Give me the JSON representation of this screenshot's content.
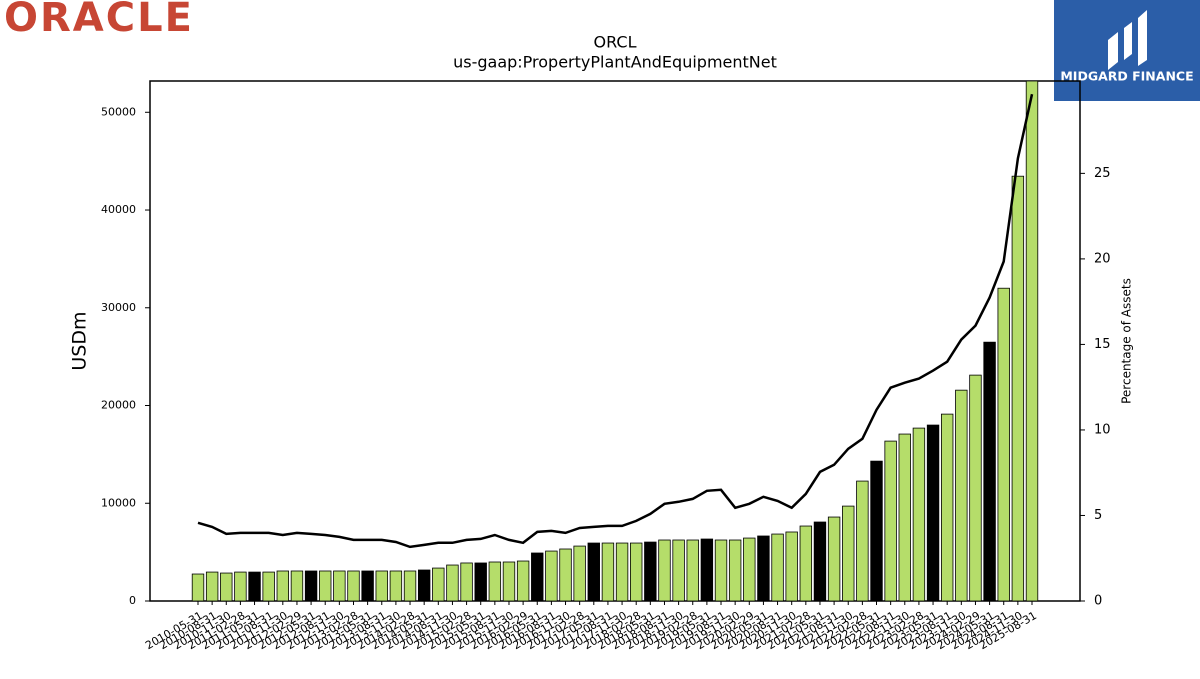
{
  "brand": "ORACLE",
  "watermark": "MIDGARD FINANCE",
  "chart_data": {
    "type": "bar",
    "title": "ORCL",
    "subtitle": "us-gaap:PropertyPlantAndEquipmentNet",
    "y_label": "USDm",
    "y2_label": "Percentage of Assets",
    "categories": [
      "2010-05-31",
      "2010-08-31",
      "2010-11-30",
      "2011-02-28",
      "2011-05-31",
      "2011-08-31",
      "2011-11-30",
      "2012-02-29",
      "2012-05-31",
      "2012-08-31",
      "2012-11-30",
      "2013-02-28",
      "2013-05-31",
      "2013-08-31",
      "2013-11-30",
      "2014-02-28",
      "2014-05-31",
      "2014-08-31",
      "2014-11-30",
      "2015-02-28",
      "2015-05-31",
      "2015-08-31",
      "2015-11-30",
      "2016-02-29",
      "2016-05-31",
      "2016-08-31",
      "2016-11-30",
      "2017-02-28",
      "2017-05-31",
      "2017-08-31",
      "2017-11-30",
      "2018-02-28",
      "2018-05-31",
      "2018-08-31",
      "2018-11-30",
      "2019-02-28",
      "2019-05-31",
      "2019-08-31",
      "2019-11-30",
      "2020-02-29",
      "2020-05-31",
      "2020-08-31",
      "2020-11-30",
      "2021-02-28",
      "2021-05-31",
      "2021-08-31",
      "2021-11-30",
      "2022-02-28",
      "2022-05-31",
      "2022-08-31",
      "2022-11-30",
      "2023-02-28",
      "2023-05-31",
      "2023-08-31",
      "2023-11-30",
      "2024-02-29",
      "2024-05-31",
      "2024-08-31",
      "2024-11-30",
      "2025-08-31"
    ],
    "series": [
      {
        "name": "PropertyPlantAndEquipmentNet",
        "type": "bar",
        "color": "#b5dd6a",
        "edge_color": "#000000",
        "colors": [
          "#b5dd6a",
          "#b5dd6a",
          "#b5dd6a",
          "#b5dd6a",
          "#000000",
          "#b5dd6a",
          "#b5dd6a",
          "#b5dd6a",
          "#000000",
          "#b5dd6a",
          "#b5dd6a",
          "#b5dd6a",
          "#000000",
          "#b5dd6a",
          "#b5dd6a",
          "#b5dd6a",
          "#000000",
          "#b5dd6a",
          "#b5dd6a",
          "#b5dd6a",
          "#000000",
          "#b5dd6a",
          "#b5dd6a",
          "#b5dd6a",
          "#000000",
          "#b5dd6a",
          "#b5dd6a",
          "#b5dd6a",
          "#000000",
          "#b5dd6a",
          "#b5dd6a",
          "#b5dd6a",
          "#000000",
          "#b5dd6a",
          "#b5dd6a",
          "#b5dd6a",
          "#000000",
          "#b5dd6a",
          "#b5dd6a",
          "#b5dd6a",
          "#000000",
          "#b5dd6a",
          "#b5dd6a",
          "#b5dd6a",
          "#000000",
          "#b5dd6a",
          "#b5dd6a",
          "#b5dd6a",
          "#000000",
          "#b5dd6a",
          "#b5dd6a",
          "#b5dd6a",
          "#000000",
          "#b5dd6a",
          "#b5dd6a",
          "#b5dd6a",
          "#000000",
          "#b5dd6a",
          "#b5dd6a",
          "#b5dd6a"
        ],
        "values": [
          2760,
          2960,
          2860,
          2960,
          2960,
          2960,
          3070,
          3070,
          3070,
          3070,
          3070,
          3070,
          3070,
          3070,
          3070,
          3070,
          3170,
          3370,
          3680,
          3890,
          3890,
          3990,
          3990,
          4090,
          4910,
          5110,
          5320,
          5620,
          5930,
          5930,
          5930,
          5930,
          6030,
          6240,
          6240,
          6240,
          6340,
          6240,
          6240,
          6440,
          6650,
          6850,
          7060,
          7670,
          8080,
          8590,
          9710,
          12270,
          14310,
          16360,
          17080,
          17690,
          18000,
          19120,
          21570,
          23110,
          26480,
          32000,
          43460,
          53200
        ]
      },
      {
        "name": "Percentage of Assets",
        "type": "line",
        "axis": "y2",
        "color": "#000000",
        "values": [
          4.57,
          4.33,
          3.92,
          3.98,
          3.98,
          3.98,
          3.86,
          3.98,
          3.92,
          3.86,
          3.75,
          3.57,
          3.57,
          3.57,
          3.45,
          3.16,
          3.28,
          3.4,
          3.4,
          3.57,
          3.63,
          3.86,
          3.57,
          3.4,
          4.04,
          4.1,
          3.98,
          4.27,
          4.33,
          4.39,
          4.39,
          4.68,
          5.09,
          5.68,
          5.8,
          5.97,
          6.44,
          6.5,
          5.45,
          5.68,
          6.09,
          5.85,
          5.45,
          6.26,
          7.55,
          7.96,
          8.9,
          9.48,
          11.18,
          12.47,
          12.76,
          13.0,
          13.47,
          13.99,
          15.28,
          16.1,
          17.74,
          19.85,
          25.88,
          29.63
        ]
      }
    ],
    "ylim": [
      0,
      53200
    ],
    "yticks": [
      0,
      10000,
      20000,
      30000,
      40000,
      50000
    ],
    "y2lim": [
      0,
      30.4
    ],
    "y2ticks": [
      0,
      5,
      10,
      15,
      20,
      25
    ]
  }
}
